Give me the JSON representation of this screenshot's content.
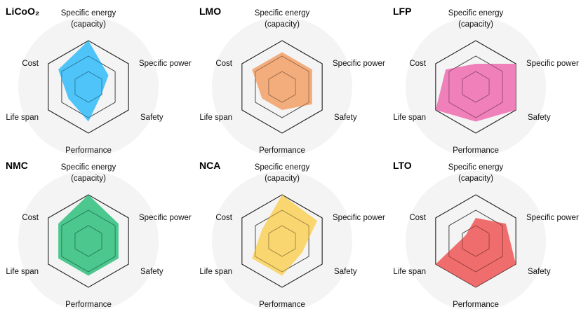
{
  "chart_data": [
    {
      "type": "radar",
      "title": "LiCoO₂",
      "axes": [
        "Specific energy (capacity)",
        "Specific power",
        "Safety",
        "Performance",
        "Life span",
        "Cost"
      ],
      "scale": [
        0,
        4
      ],
      "values": [
        4.0,
        2.0,
        1.3,
        3.0,
        2.0,
        3.0
      ],
      "color": "#38bdf8"
    },
    {
      "type": "radar",
      "title": "LMO",
      "axes": [
        "Specific energy (capacity)",
        "Specific power",
        "Safety",
        "Performance",
        "Life span",
        "Cost"
      ],
      "scale": [
        0,
        4
      ],
      "values": [
        3.0,
        3.0,
        3.0,
        2.0,
        2.0,
        3.0
      ],
      "color": "#f2a36b"
    },
    {
      "type": "radar",
      "title": "LFP",
      "axes": [
        "Specific energy (capacity)",
        "Specific power",
        "Safety",
        "Performance",
        "Life span",
        "Cost"
      ],
      "scale": [
        0,
        4
      ],
      "values": [
        2.0,
        4.0,
        4.0,
        3.0,
        4.0,
        3.0
      ],
      "color": "#ee6fb0"
    },
    {
      "type": "radar",
      "title": "NMC",
      "axes": [
        "Specific energy (capacity)",
        "Specific power",
        "Safety",
        "Performance",
        "Life span",
        "Cost"
      ],
      "scale": [
        0,
        4
      ],
      "values": [
        4.0,
        3.0,
        3.0,
        3.0,
        3.0,
        3.0
      ],
      "color": "#34c07f"
    },
    {
      "type": "radar",
      "title": "NCA",
      "axes": [
        "Specific energy (capacity)",
        "Specific power",
        "Safety",
        "Performance",
        "Life span",
        "Cost"
      ],
      "scale": [
        0,
        4
      ],
      "values": [
        4.0,
        3.5,
        2.0,
        3.0,
        3.0,
        2.0
      ],
      "color": "#f9d25d"
    },
    {
      "type": "radar",
      "title": "LTO",
      "axes": [
        "Specific energy (capacity)",
        "Specific power",
        "Safety",
        "Performance",
        "Life span",
        "Cost"
      ],
      "scale": [
        0,
        4
      ],
      "values": [
        2.0,
        3.0,
        4.0,
        4.0,
        4.0,
        1.0
      ],
      "color": "#ee5a5a"
    }
  ],
  "labels": {
    "specific_energy_line1": "Specific energy",
    "specific_energy_line2": "(capacity)",
    "specific_power": "Specific power",
    "safety": "Safety",
    "performance": "Performance",
    "life_span": "Life span",
    "cost": "Cost"
  }
}
